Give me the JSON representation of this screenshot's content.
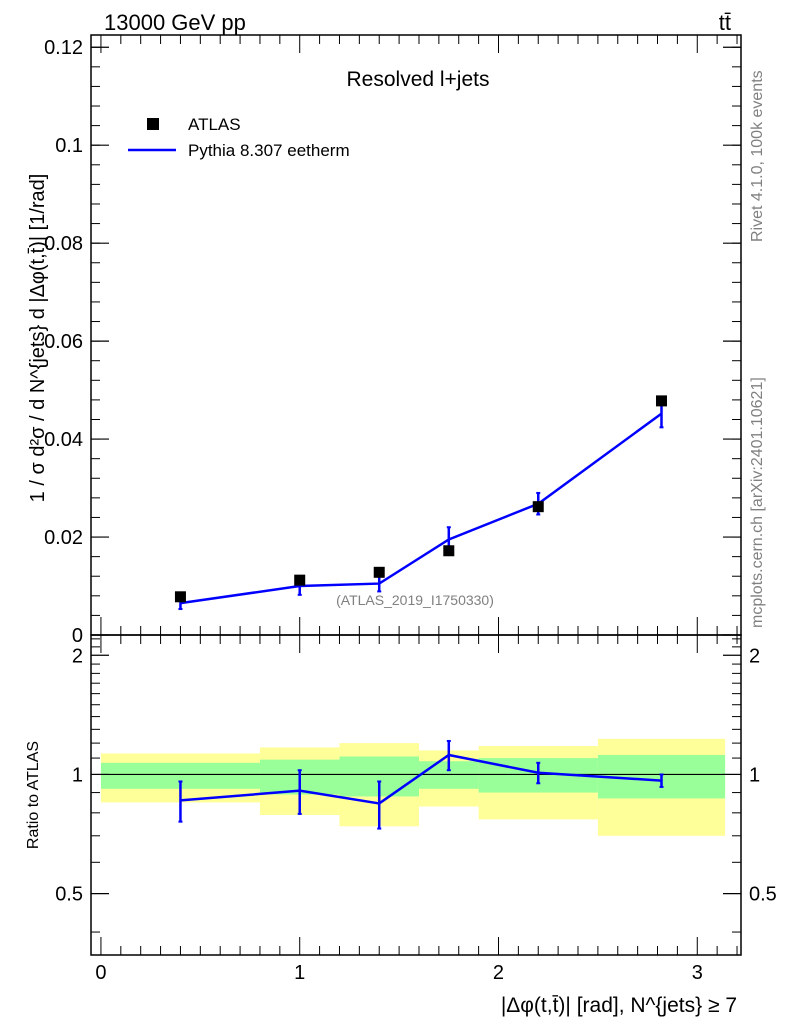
{
  "header": {
    "energy_label": "13000 GeV pp",
    "process_label": "tt̄",
    "side_label_top": "Rivet 4.1.0,  100k events",
    "side_label_bottom": "mcplots.cern.ch [arXiv:2401.10621]"
  },
  "chart_data": [
    {
      "type": "scatter",
      "panel": "main",
      "title": "Resolved l+jets",
      "watermark": "(ATLAS_2019_I1750330)",
      "ylabel": "1 / σ d²σ / d N^{jets} d |Δφ(t,t̄)| [1/rad]",
      "xlabel": "",
      "xlim": [
        -0.05,
        3.22
      ],
      "ylim": [
        0,
        0.1225
      ],
      "yticks": [
        0,
        0.02,
        0.04,
        0.06,
        0.08,
        0.1,
        0.12
      ],
      "ytick_labels": [
        "0",
        "0.02",
        "0.04",
        "0.06",
        "0.08",
        "0.1",
        "0.12"
      ],
      "legend": [
        {
          "name": "ATLAS",
          "marker": "square",
          "color": "#000000"
        },
        {
          "name": "Pythia 8.307 eetherm",
          "marker": "line",
          "color": "#0000ff"
        }
      ],
      "series": [
        {
          "name": "ATLAS",
          "x": [
            0.4,
            1.0,
            1.4,
            1.75,
            2.2,
            2.82
          ],
          "y": [
            0.0078,
            0.0112,
            0.0128,
            0.0172,
            0.0262,
            0.0478
          ]
        },
        {
          "name": "Pythia 8.307 eetherm",
          "x": [
            0.4,
            1.0,
            1.4,
            1.75,
            2.2,
            2.82
          ],
          "y": [
            0.0065,
            0.01,
            0.0105,
            0.0195,
            0.0268,
            0.0452
          ],
          "yerr": [
            0.0012,
            0.0018,
            0.0016,
            0.0025,
            0.0022,
            0.0028
          ]
        }
      ]
    },
    {
      "type": "line",
      "panel": "ratio",
      "ylabel": "Ratio to ATLAS",
      "xlabel": "|Δφ(t,t̄)| [rad], N^{jets} ≥ 7",
      "xlim": [
        -0.05,
        3.22
      ],
      "ylim": [
        0.35,
        2.25
      ],
      "yticks": [
        0.5,
        1,
        2
      ],
      "ytick_labels": [
        "0.5",
        "1",
        "2"
      ],
      "xticks": [
        0,
        1,
        2,
        3
      ],
      "xtick_labels": [
        "0",
        "1",
        "2",
        "3"
      ],
      "bands": [
        {
          "x0": 0.0,
          "x1": 0.8,
          "inner": [
            0.92,
            1.07
          ],
          "outer": [
            0.85,
            1.13
          ]
        },
        {
          "x0": 0.8,
          "x1": 1.2,
          "inner": [
            0.89,
            1.09
          ],
          "outer": [
            0.79,
            1.17
          ]
        },
        {
          "x0": 1.2,
          "x1": 1.6,
          "inner": [
            0.88,
            1.11
          ],
          "outer": [
            0.74,
            1.2
          ]
        },
        {
          "x0": 1.6,
          "x1": 1.9,
          "inner": [
            0.92,
            1.08
          ],
          "outer": [
            0.83,
            1.15
          ]
        },
        {
          "x0": 1.9,
          "x1": 2.5,
          "inner": [
            0.9,
            1.1
          ],
          "outer": [
            0.77,
            1.18
          ]
        },
        {
          "x0": 2.5,
          "x1": 3.14,
          "inner": [
            0.87,
            1.12
          ],
          "outer": [
            0.7,
            1.23
          ]
        }
      ],
      "series": [
        {
          "name": "Pythia 8.307 eetherm",
          "x": [
            0.4,
            1.0,
            1.4,
            1.75,
            2.2,
            2.82
          ],
          "y": [
            0.86,
            0.91,
            0.845,
            1.12,
            1.01,
            0.965
          ],
          "yerr": [
            0.1,
            0.115,
            0.115,
            0.095,
            0.06,
            0.035
          ]
        }
      ]
    }
  ]
}
